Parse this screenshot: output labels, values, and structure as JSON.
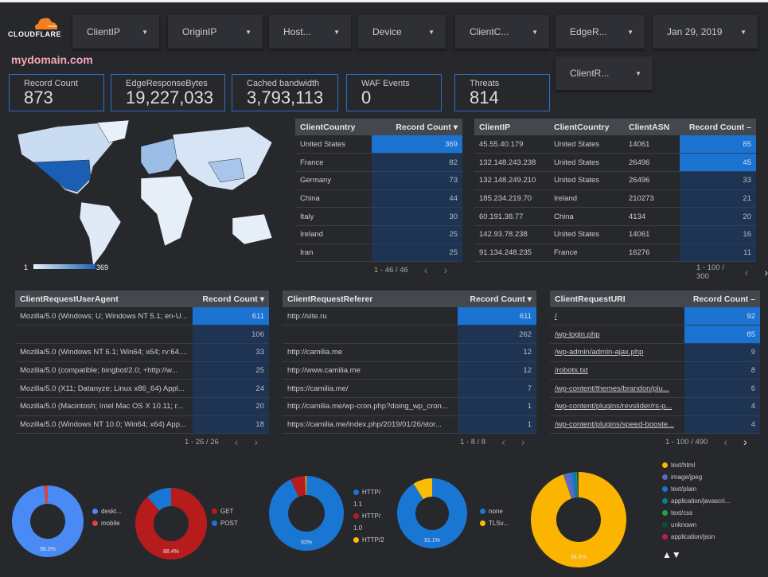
{
  "brand": {
    "logo_text": "CLOUDFLARE",
    "site": "mydomain.com"
  },
  "filters": [
    {
      "label": "ClientIP"
    },
    {
      "label": "OriginIP"
    },
    {
      "label": "Host..."
    },
    {
      "label": "Device"
    },
    {
      "label": "ClientC..."
    },
    {
      "label": "EdgeR..."
    },
    {
      "label": "Jan 29, 2019"
    },
    {
      "label": "ClientR..."
    }
  ],
  "kpis": [
    {
      "label": "Record Count",
      "value": "873"
    },
    {
      "label": "EdgeResponseBytes",
      "value": "19,227,033"
    },
    {
      "label": "Cached bandwidth",
      "value": "3,793,113"
    },
    {
      "label": "WAF Events",
      "value": "0"
    },
    {
      "label": "Threats",
      "value": "814"
    }
  ],
  "map": {
    "legend_min": "1",
    "legend_max": "369"
  },
  "country_table": {
    "headers": [
      "ClientCountry",
      "Record Count ▾"
    ],
    "rows": [
      [
        "United States",
        "369"
      ],
      [
        "France",
        "82"
      ],
      [
        "Germany",
        "73"
      ],
      [
        "China",
        "44"
      ],
      [
        "Italy",
        "30"
      ],
      [
        "Ireland",
        "25"
      ],
      [
        "Iran",
        "25"
      ]
    ],
    "pager": "1 - 46 / 46"
  },
  "ip_table": {
    "headers": [
      "ClientIP",
      "ClientCountry",
      "ClientASN",
      "Record Count –"
    ],
    "rows": [
      [
        "45.55.40.179",
        "United States",
        "14061",
        "85"
      ],
      [
        "132.148.243.238",
        "United States",
        "26496",
        "45"
      ],
      [
        "132.148.249.210",
        "United States",
        "26496",
        "33"
      ],
      [
        "185.234.219.70",
        "Ireland",
        "210273",
        "21"
      ],
      [
        "60.191.38.77",
        "China",
        "4134",
        "20"
      ],
      [
        "142.93.78.238",
        "United States",
        "14061",
        "16"
      ],
      [
        "91.134.248.235",
        "France",
        "16276",
        "11"
      ]
    ],
    "pager": "1 - 100 / 300"
  },
  "ua_table": {
    "headers": [
      "ClientRequestUserAgent",
      "Record Count ▾"
    ],
    "rows": [
      [
        "Mozilla/5.0 (Windows; U; Windows NT 5.1; en-U...",
        "611"
      ],
      [
        "",
        "106"
      ],
      [
        "Mozilla/5.0 (Windows NT 6.1; Win64; x64; rv:64....",
        "33"
      ],
      [
        "Mozilla/5.0 (compatible; bingbot/2.0; +http://w...",
        "25"
      ],
      [
        "Mozilla/5.0 (X11; Datanyze; Linux x86_64) Appl...",
        "24"
      ],
      [
        "Mozilla/5.0 (Macintosh; Intel Mac OS X 10.11; r...",
        "20"
      ],
      [
        "Mozilla/5.0 (Windows NT 10.0; Win64; x64) App...",
        "18"
      ]
    ],
    "pager": "1 - 26 / 26"
  },
  "ref_table": {
    "headers": [
      "ClientRequestReferer",
      "Record Count ▾"
    ],
    "rows": [
      [
        "http://site.ru",
        "611"
      ],
      [
        "",
        "262"
      ],
      [
        "http://camilia.me",
        "12"
      ],
      [
        "http://www.camilia.me",
        "12"
      ],
      [
        "https://camilia.me/",
        "7"
      ],
      [
        "http://camilia.me/wp-cron.php?doing_wp_cron...",
        "1"
      ],
      [
        "https://camilia.me/index.php/2019/01/26/stor...",
        "1"
      ]
    ],
    "pager": "1 - 8 / 8"
  },
  "uri_table": {
    "headers": [
      "ClientRequestURI",
      "Record Count –"
    ],
    "rows": [
      [
        "/",
        "92"
      ],
      [
        "/wp-login.php",
        "85"
      ],
      [
        "/wp-admin/admin-ajax.php",
        "9"
      ],
      [
        "/robots.txt",
        "8"
      ],
      [
        "/wp-content/themes/brandon/plu...",
        "6"
      ],
      [
        "/wp-content/plugins/revslider/rs-p...",
        "4"
      ],
      [
        "/wp-content/plugins/speed-booste...",
        "4"
      ]
    ],
    "pager": "1 - 100 / 490"
  },
  "chart_data": [
    {
      "type": "pie",
      "donut": true,
      "categories": [
        "deskt...",
        "mobile"
      ],
      "values": [
        98.3,
        1.7
      ],
      "colors": [
        "#4a8af4",
        "#db4437"
      ],
      "label": "98.3%"
    },
    {
      "type": "pie",
      "donut": true,
      "categories": [
        "GET",
        "POST"
      ],
      "values": [
        88.4,
        11.6
      ],
      "colors": [
        "#b71c1c",
        "#1976d2"
      ],
      "label": "88.4%"
    },
    {
      "type": "pie",
      "donut": true,
      "categories": [
        "HTTP/ 1.1",
        "HTTP/ 1.0",
        "HTTP/2"
      ],
      "values": [
        93,
        6.5,
        0.5
      ],
      "colors": [
        "#1976d2",
        "#b71c1c",
        "#fbbc04"
      ],
      "label": "93%"
    },
    {
      "type": "pie",
      "donut": true,
      "categories": [
        "none",
        "TLSv..."
      ],
      "values": [
        91.1,
        8.9
      ],
      "colors": [
        "#1976d2",
        "#fbbc04"
      ],
      "label": "91.1%"
    },
    {
      "type": "pie",
      "donut": true,
      "categories": [
        "text/html",
        "image/jpeg",
        "text/plain",
        "application/javascri...",
        "text/css",
        "unknown",
        "application/json"
      ],
      "values": [
        94.8,
        2.5,
        1.2,
        0.6,
        0.4,
        0.3,
        0.2
      ],
      "colors": [
        "#fbb400",
        "#5c6bc0",
        "#1976d2",
        "#00838f",
        "#2e9e47",
        "#0b4d3a",
        "#c2185b"
      ],
      "label": "94.8%"
    }
  ],
  "legend_nav": "▲▼"
}
